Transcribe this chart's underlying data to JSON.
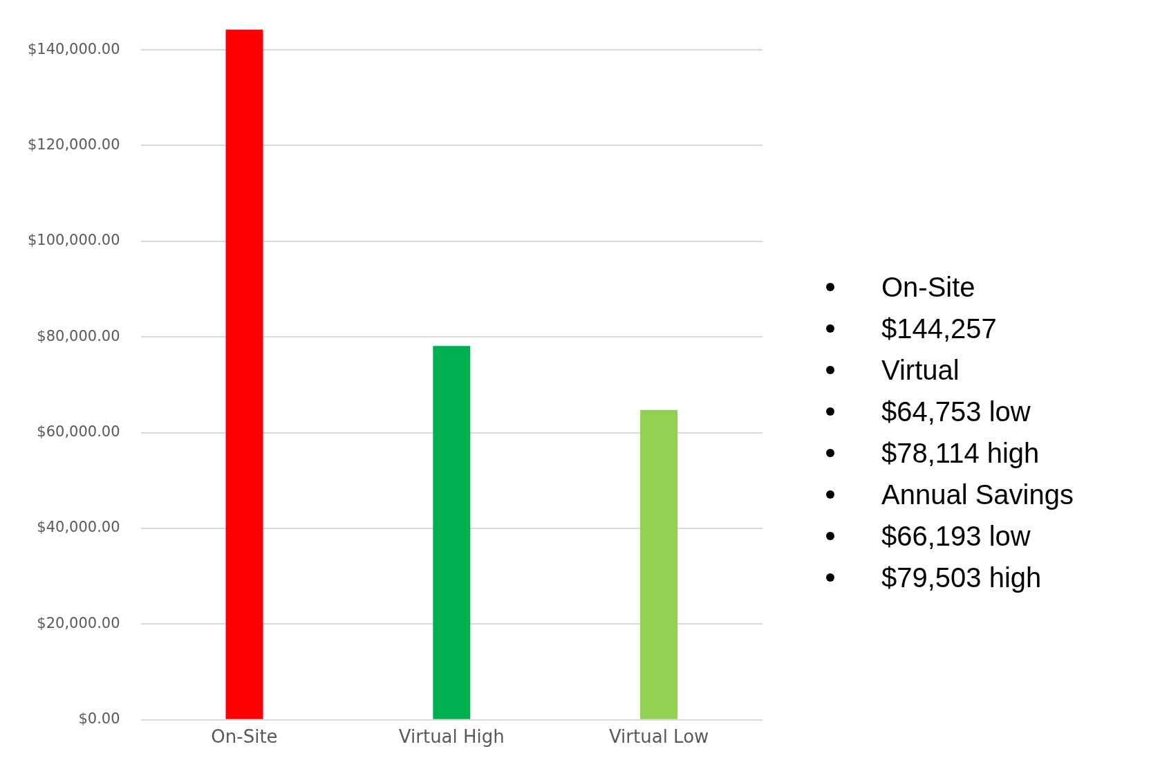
{
  "chart_data": {
    "type": "bar",
    "categories": [
      "On-Site",
      "Virtual High",
      "Virtual Low"
    ],
    "values": [
      144257,
      78114,
      64753
    ],
    "colors": [
      "#ff0000",
      "#00b050",
      "#92d050"
    ],
    "ylim": [
      0,
      144257
    ],
    "yticks": [
      {
        "value": 0,
        "label": "$0.00"
      },
      {
        "value": 20000,
        "label": "$20,000.00"
      },
      {
        "value": 40000,
        "label": "$40,000.00"
      },
      {
        "value": 60000,
        "label": "$60,000.00"
      },
      {
        "value": 80000,
        "label": "$80,000.00"
      },
      {
        "value": 100000,
        "label": "$100,000.00"
      },
      {
        "value": 120000,
        "label": "$120,000.00"
      },
      {
        "value": 140000,
        "label": "$140,000.00"
      }
    ],
    "grid": "y",
    "legend": false,
    "annotations": [
      "On-Site",
      "$144,257",
      "Virtual",
      "$64,753 low",
      "$78,114 high",
      "Annual Savings",
      "$66,193 low",
      "$79,503 high"
    ]
  }
}
